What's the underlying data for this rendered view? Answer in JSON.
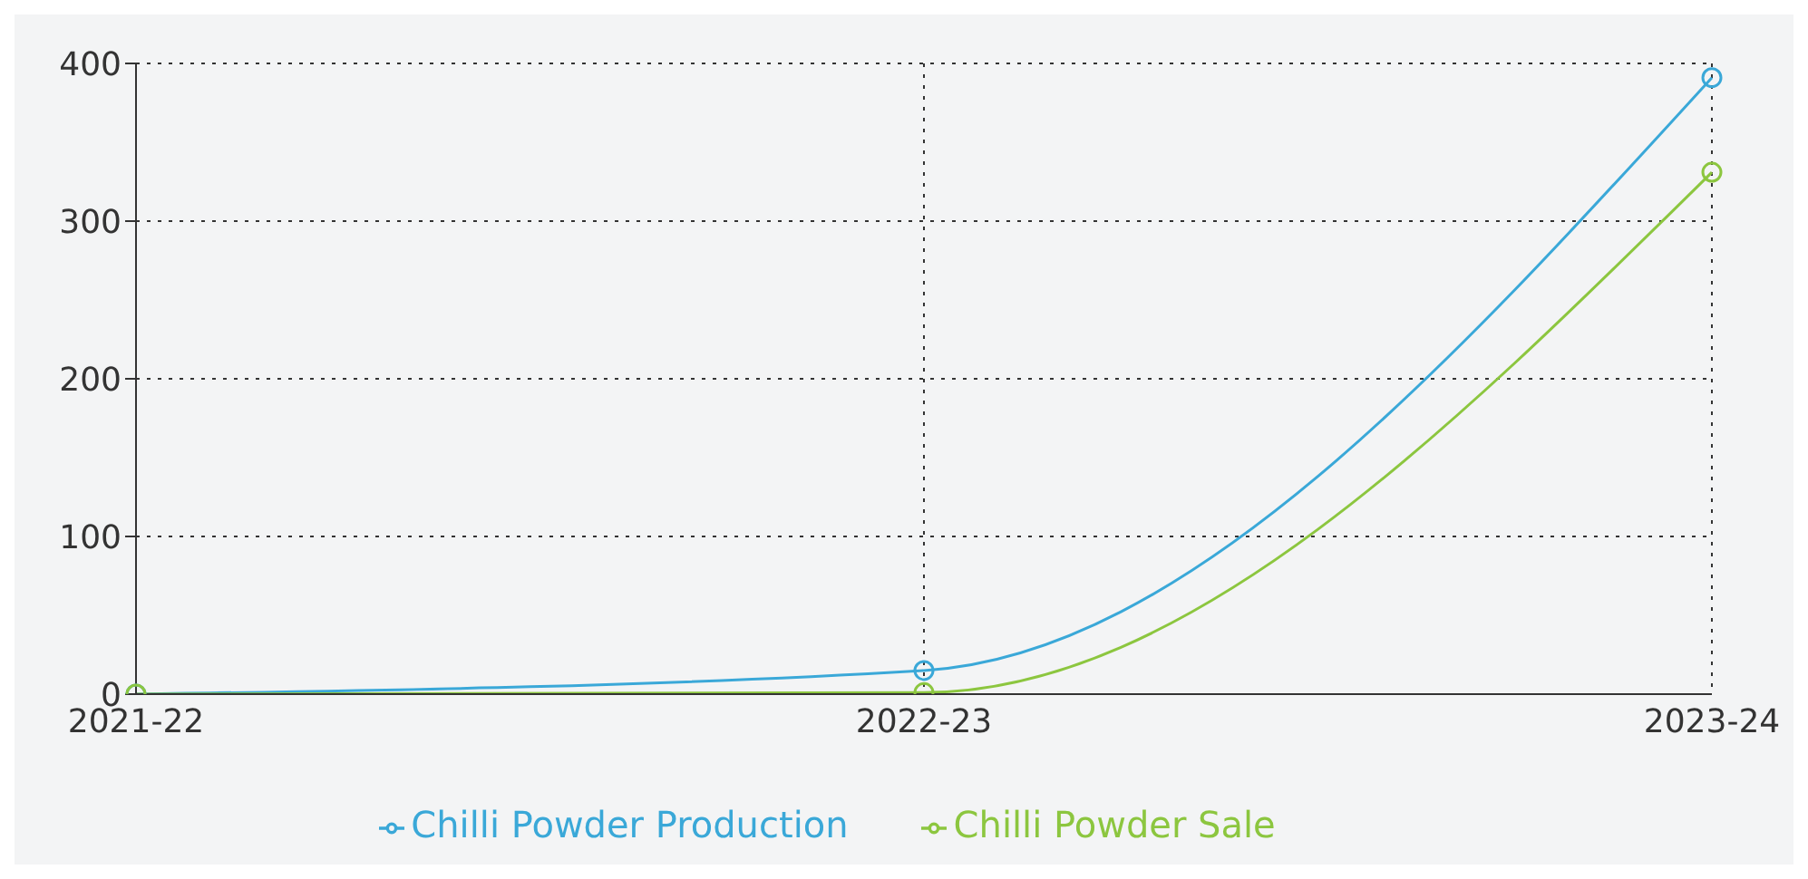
{
  "chart_data": {
    "type": "line",
    "categories": [
      "2021-22",
      "2022-23",
      "2023-24"
    ],
    "series": [
      {
        "name": "Chilli Powder Production",
        "color": "#3aa8d8",
        "values": [
          0,
          15,
          391
        ]
      },
      {
        "name": "Chilli Powder Sale",
        "color": "#8cc63f",
        "values": [
          0,
          1,
          331
        ]
      }
    ],
    "ylim": [
      0,
      400
    ],
    "yticks": [
      0,
      100,
      200,
      300,
      400
    ],
    "grid": true,
    "legend": "bottom",
    "marker": "circle",
    "line_style": "solid"
  }
}
